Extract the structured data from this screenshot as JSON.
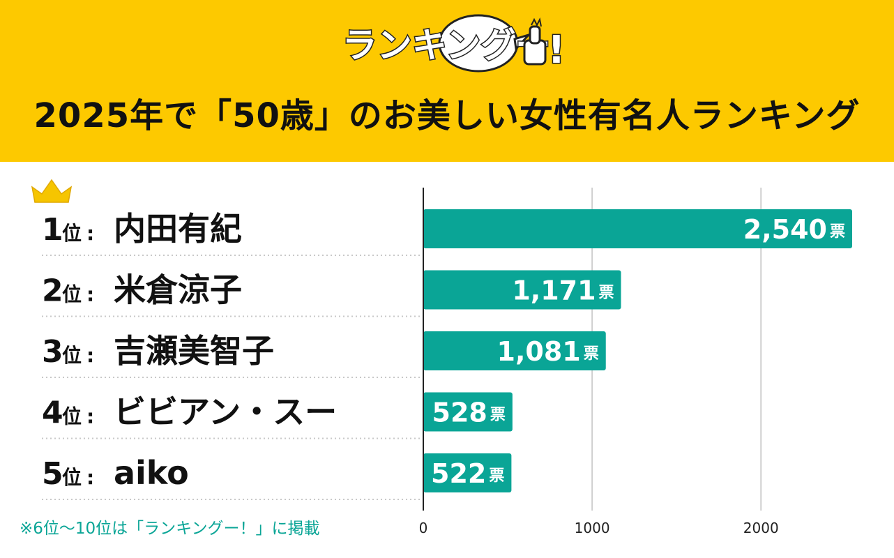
{
  "logo": {
    "text": "ランキングー",
    "mark": "!"
  },
  "title": "2025年で「50歳」のお美しい女性有名人ランキング",
  "footnote": "※6位〜10位は「ランキングー！」に掲載",
  "colors": {
    "header_bg": "#fdc900",
    "bar": "#0aa596",
    "crown": "#f6c500",
    "footnote": "#0aa596"
  },
  "rank_suffix": "位",
  "rank_colon": ":",
  "unit": "票",
  "chart_data": {
    "type": "bar",
    "orientation": "horizontal",
    "categories": [
      "内田有紀",
      "米倉涼子",
      "吉瀬美智子",
      "ビビアン・スー",
      "aiko"
    ],
    "ranks": [
      1,
      2,
      3,
      4,
      5
    ],
    "values": [
      2540,
      1171,
      1081,
      528,
      522
    ],
    "value_labels": [
      "2,540",
      "1,171",
      "1,081",
      "528",
      "522"
    ],
    "xlim": [
      0,
      2540
    ],
    "xticks": [
      0,
      1000,
      2000
    ],
    "grid": true,
    "legend": "none"
  }
}
